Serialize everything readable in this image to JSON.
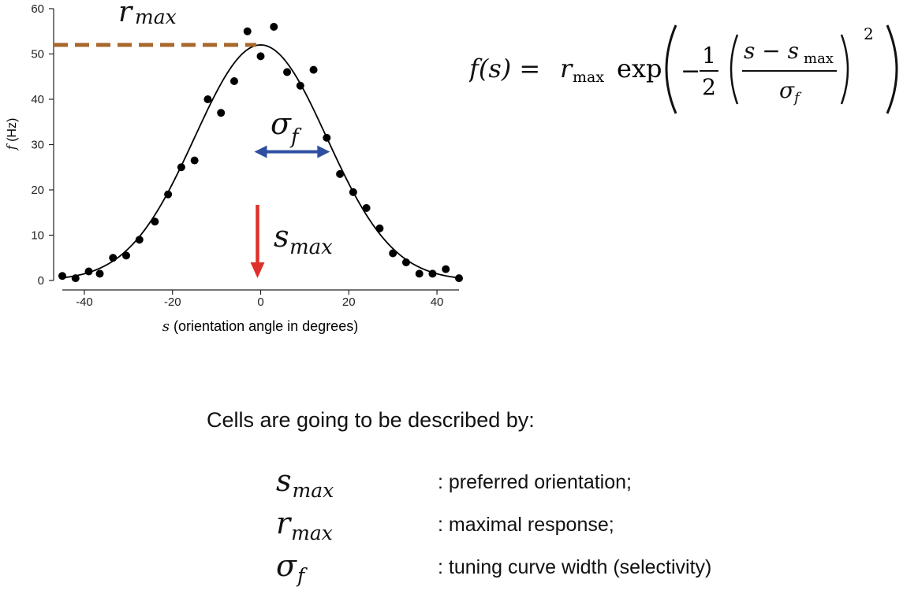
{
  "chart_data": {
    "type": "scatter",
    "xlabel_var": "s",
    "xlabel_rest": " (orientation angle in degrees)",
    "ylabel_var": "f",
    "ylabel_rest": " (Hz)",
    "xlim": [
      -45,
      45
    ],
    "ylim": [
      0,
      60
    ],
    "x_ticks": [
      -40,
      -20,
      0,
      20,
      40
    ],
    "y_ticks": [
      0,
      10,
      20,
      30,
      40,
      50,
      60
    ],
    "points": [
      {
        "x": -45,
        "y": 1
      },
      {
        "x": -42,
        "y": 0.5
      },
      {
        "x": -39,
        "y": 2
      },
      {
        "x": -36.5,
        "y": 1.5
      },
      {
        "x": -33.5,
        "y": 5
      },
      {
        "x": -30.5,
        "y": 5.5
      },
      {
        "x": -27.5,
        "y": 9
      },
      {
        "x": -24,
        "y": 13
      },
      {
        "x": -21,
        "y": 19
      },
      {
        "x": -18,
        "y": 25
      },
      {
        "x": -15,
        "y": 26.5
      },
      {
        "x": -12,
        "y": 40
      },
      {
        "x": -9,
        "y": 37
      },
      {
        "x": -6,
        "y": 44
      },
      {
        "x": -3,
        "y": 55
      },
      {
        "x": 0,
        "y": 49.5
      },
      {
        "x": 3,
        "y": 56
      },
      {
        "x": 6,
        "y": 46
      },
      {
        "x": 9,
        "y": 43
      },
      {
        "x": 12,
        "y": 46.5
      },
      {
        "x": 15,
        "y": 31.5
      },
      {
        "x": 18,
        "y": 23.5
      },
      {
        "x": 21,
        "y": 19.5
      },
      {
        "x": 24,
        "y": 16
      },
      {
        "x": 27,
        "y": 11.5
      },
      {
        "x": 30,
        "y": 6
      },
      {
        "x": 33,
        "y": 4
      },
      {
        "x": 36,
        "y": 1.5
      },
      {
        "x": 39,
        "y": 1.5
      },
      {
        "x": 42,
        "y": 2.5
      },
      {
        "x": 45,
        "y": 0.5
      }
    ],
    "fit": {
      "r_max": 52,
      "s_max": 0,
      "sigma_f": 15
    },
    "annotations": {
      "r_max_label_main": "r",
      "r_max_label_sub": "max",
      "sigma_label_main": "σ",
      "sigma_label_sub": "f",
      "s_max_label_main": "s",
      "s_max_label_sub": "max",
      "r_max_line_color": "#A8682C",
      "sigma_arrow_color": "#2E4FA0",
      "s_max_arrow_color": "#E0302A"
    }
  },
  "formula": {
    "lhs": "f(s) = ",
    "r": "r",
    "r_sub": "max",
    "exp": "exp",
    "minus": "−",
    "one": "1",
    "two": "2",
    "s": "s − s",
    "s_sub": "max",
    "sigma": "σ",
    "sigma_sub": "f",
    "power": "2"
  },
  "caption": "Cells are going to be described by:",
  "legend": [
    {
      "sym": "s",
      "sub": "max",
      "desc": ": preferred orientation;"
    },
    {
      "sym": "r",
      "sub": "max",
      "desc": ": maximal response;"
    },
    {
      "sym": "σ",
      "sub": "f",
      "desc": ": tuning curve width (selectivity)"
    }
  ]
}
